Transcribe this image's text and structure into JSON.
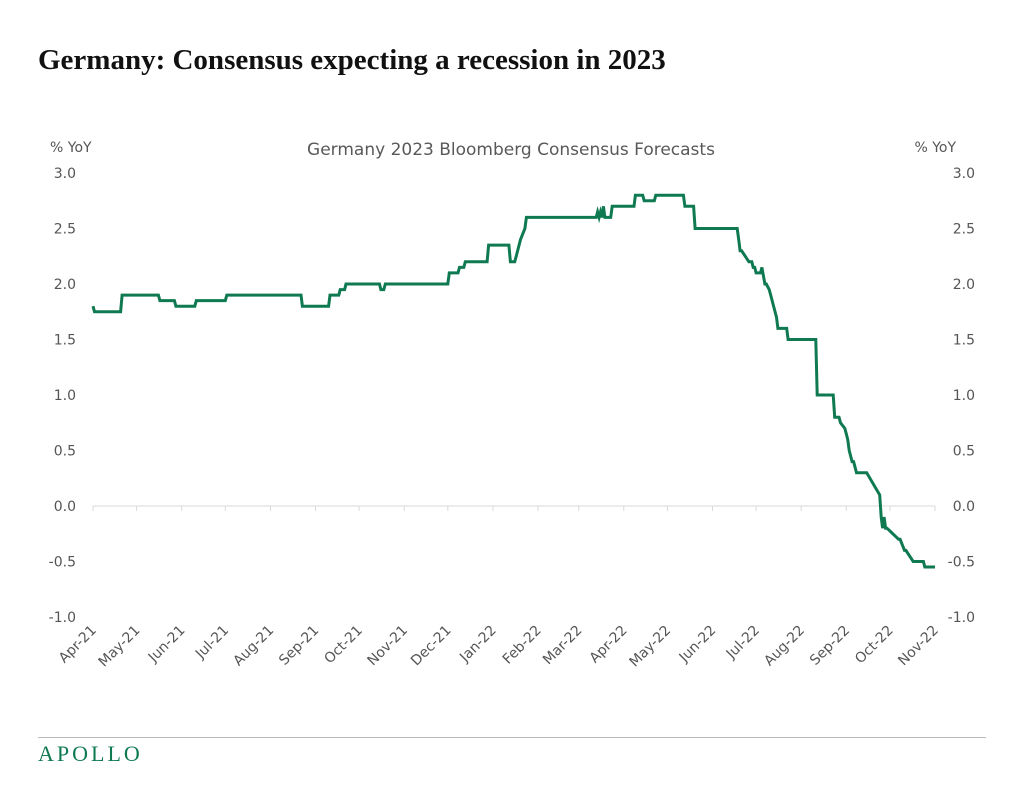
{
  "title": "Germany: Consensus expecting a recession in 2023",
  "footer": {
    "brand": "APOLLO"
  },
  "colors": {
    "line": "#0f7a52",
    "brand": "#0f7a52",
    "text": "#555555",
    "axis": "#d9d9d9"
  },
  "chart_data": {
    "type": "line",
    "title": "Germany 2023 Bloomberg Consensus Forecasts",
    "ylabel_left": "% YoY",
    "ylabel_right": "% YoY",
    "ylim": [
      -1.0,
      3.0
    ],
    "yticks": [
      "3.0",
      "2.5",
      "2.0",
      "1.5",
      "1.0",
      "0.5",
      "0.0",
      "-0.5",
      "-1.0"
    ],
    "ytick_values": [
      3.0,
      2.5,
      2.0,
      1.5,
      1.0,
      0.5,
      0.0,
      -0.5,
      -1.0
    ],
    "xlim": [
      "2021-04-01",
      "2022-11-01"
    ],
    "x_tick_labels": [
      "Apr-21",
      "May-21",
      "Jun-21",
      "Jul-21",
      "Aug-21",
      "Sep-21",
      "Oct-21",
      "Nov-21",
      "Dec-21",
      "Jan-22",
      "Feb-22",
      "Mar-22",
      "Apr-22",
      "May-22",
      "Jun-22",
      "Jul-22",
      "Aug-22",
      "Sep-22",
      "Oct-22",
      "Nov-22"
    ],
    "x_tick_dates": [
      "2021-04-01",
      "2021-05-01",
      "2021-06-01",
      "2021-07-01",
      "2021-08-01",
      "2021-09-01",
      "2021-10-01",
      "2021-11-01",
      "2021-12-01",
      "2022-01-01",
      "2022-02-01",
      "2022-03-01",
      "2022-04-01",
      "2022-05-01",
      "2022-06-01",
      "2022-07-01",
      "2022-08-01",
      "2022-09-01",
      "2022-10-01",
      "2022-11-01"
    ],
    "grid": false,
    "legend": "none",
    "series": [
      {
        "x": [
          "2021-04-01",
          "2021-04-02",
          "2021-04-20",
          "2021-04-21",
          "2021-05-16",
          "2021-05-17",
          "2021-05-27",
          "2021-05-28",
          "2021-06-10",
          "2021-06-11",
          "2021-07-01",
          "2021-07-02",
          "2021-08-22",
          "2021-08-23",
          "2021-09-10",
          "2021-09-11",
          "2021-09-17",
          "2021-09-18",
          "2021-09-21",
          "2021-09-22",
          "2021-10-15",
          "2021-10-16",
          "2021-10-18",
          "2021-10-19",
          "2021-12-01",
          "2021-12-02",
          "2021-12-08",
          "2021-12-09",
          "2021-12-12",
          "2021-12-13",
          "2021-12-16",
          "2021-12-17",
          "2021-12-28",
          "2021-12-29",
          "2022-01-12",
          "2022-01-13",
          "2022-01-16",
          "2022-01-17",
          "2022-01-20",
          "2022-01-23",
          "2022-01-24",
          "2022-03-13",
          "2022-03-14",
          "2022-03-15",
          "2022-03-16",
          "2022-03-17",
          "2022-03-18",
          "2022-03-19",
          "2022-03-23",
          "2022-03-24",
          "2022-04-08",
          "2022-04-09",
          "2022-04-14",
          "2022-04-15",
          "2022-04-22",
          "2022-04-23",
          "2022-05-12",
          "2022-05-13",
          "2022-05-19",
          "2022-05-20",
          "2022-06-18",
          "2022-06-19",
          "2022-06-20",
          "2022-06-21",
          "2022-06-26",
          "2022-06-27",
          "2022-06-28",
          "2022-06-29",
          "2022-06-30",
          "2022-07-01",
          "2022-07-04",
          "2022-07-05",
          "2022-07-07",
          "2022-07-08",
          "2022-07-10",
          "2022-07-11",
          "2022-07-15",
          "2022-07-16",
          "2022-07-22",
          "2022-07-23",
          "2022-08-11",
          "2022-08-12",
          "2022-08-23",
          "2022-08-24",
          "2022-08-27",
          "2022-08-28",
          "2022-08-31",
          "2022-09-01",
          "2022-09-02",
          "2022-09-03",
          "2022-09-05",
          "2022-09-06",
          "2022-09-08",
          "2022-09-09",
          "2022-09-14",
          "2022-09-15",
          "2022-09-24",
          "2022-09-25",
          "2022-09-26",
          "2022-09-27",
          "2022-09-28",
          "2022-09-29",
          "2022-10-07",
          "2022-10-08",
          "2022-10-11",
          "2022-10-12",
          "2022-10-17",
          "2022-10-18",
          "2022-10-24",
          "2022-10-25",
          "2022-11-01"
        ],
        "y": [
          1.8,
          1.75,
          1.75,
          1.9,
          1.9,
          1.85,
          1.85,
          1.8,
          1.8,
          1.85,
          1.85,
          1.9,
          1.9,
          1.8,
          1.8,
          1.9,
          1.9,
          1.95,
          1.95,
          2.0,
          2.0,
          1.95,
          1.95,
          2.0,
          2.0,
          2.1,
          2.1,
          2.15,
          2.15,
          2.2,
          2.2,
          2.2,
          2.2,
          2.35,
          2.35,
          2.2,
          2.2,
          2.25,
          2.4,
          2.5,
          2.6,
          2.6,
          2.65,
          2.6,
          2.65,
          2.6,
          2.7,
          2.6,
          2.6,
          2.7,
          2.7,
          2.8,
          2.8,
          2.75,
          2.75,
          2.8,
          2.8,
          2.7,
          2.7,
          2.5,
          2.5,
          2.4,
          2.3,
          2.3,
          2.2,
          2.2,
          2.2,
          2.15,
          2.15,
          2.1,
          2.1,
          2.15,
          2.0,
          2.0,
          1.95,
          1.9,
          1.7,
          1.6,
          1.6,
          1.5,
          1.5,
          1.0,
          1.0,
          0.8,
          0.8,
          0.75,
          0.7,
          0.65,
          0.6,
          0.5,
          0.4,
          0.4,
          0.3,
          0.3,
          0.3,
          0.3,
          0.1,
          -0.1,
          -0.2,
          -0.1,
          -0.2,
          -0.2,
          -0.3,
          -0.3,
          -0.4,
          -0.4,
          -0.5,
          -0.5,
          -0.5,
          -0.55,
          -0.55
        ]
      }
    ]
  }
}
